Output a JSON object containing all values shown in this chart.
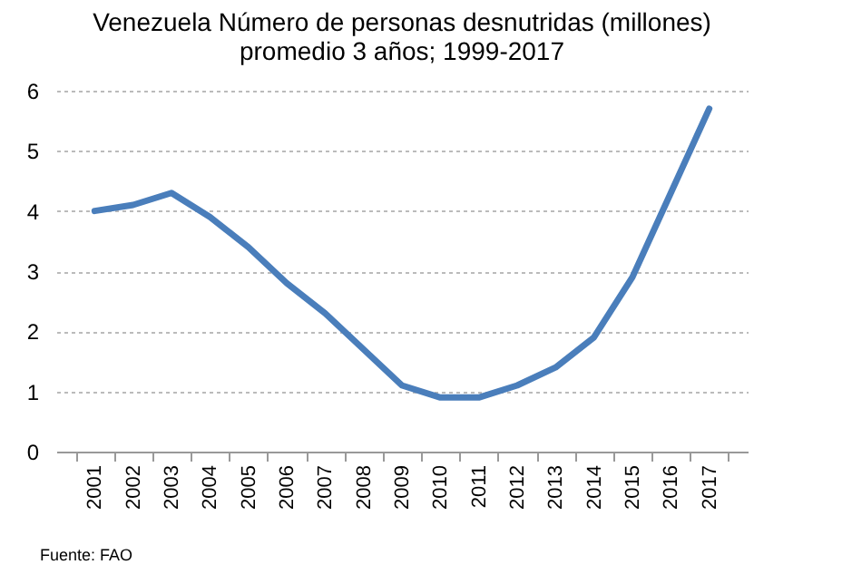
{
  "chart_data": {
    "type": "line",
    "title": "Venezuela Número  de personas desnutridas (millones)",
    "subtitle": "promedio 3 años; 1999-2017",
    "categories": [
      "2001",
      "2002",
      "2003",
      "2004",
      "2005",
      "2006",
      "2007",
      "2008",
      "2009",
      "2010",
      "2011",
      "2012",
      "2013",
      "2014",
      "2015",
      "2016",
      "2017"
    ],
    "series": [
      {
        "color": "#4a7ebb",
        "values": [
          4.0,
          4.1,
          4.3,
          3.9,
          3.4,
          2.8,
          2.3,
          1.7,
          1.1,
          0.9,
          0.9,
          1.1,
          1.4,
          1.9,
          2.9,
          4.3,
          5.7
        ]
      }
    ],
    "ylim": [
      0,
      6
    ],
    "yticks": [
      0,
      1,
      2,
      3,
      4,
      5,
      6
    ],
    "grid": "y",
    "marker": "none",
    "line_style": "solid",
    "annotations": [
      "Fuente: FAO"
    ]
  }
}
